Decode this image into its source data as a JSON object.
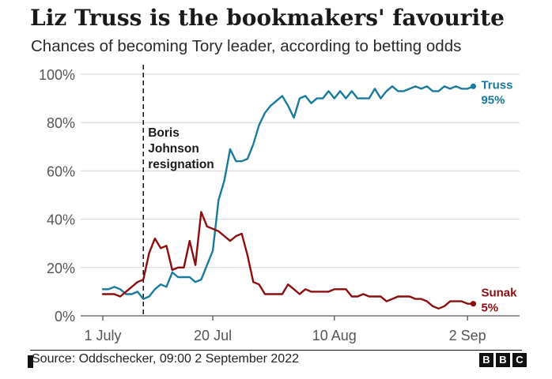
{
  "title": "Liz Truss is the bookmakers' favourite",
  "subtitle": "Chances of becoming Tory leader, according to betting odds",
  "source": "Source: Oddschecker, 09:00 2 September 2022",
  "logo": [
    "B",
    "B",
    "C"
  ],
  "chart_data": {
    "type": "line",
    "y_ticks": [
      "0%",
      "20%",
      "40%",
      "60%",
      "80%",
      "100%"
    ],
    "ylim": [
      0,
      100
    ],
    "x_ticks": [
      {
        "label": "1 July",
        "day": 0
      },
      {
        "label": "20 Jul",
        "day": 19
      },
      {
        "label": "10 Aug",
        "day": 40
      },
      {
        "label": "2 Sep",
        "day": 63
      }
    ],
    "grid": true,
    "annotation": {
      "lines": [
        "Boris",
        "Johnson",
        "resignation"
      ],
      "day": 7
    },
    "series": [
      {
        "name": "Truss",
        "end_label": "95%",
        "color": "#1a7a9c",
        "points": [
          [
            0,
            11
          ],
          [
            1,
            11
          ],
          [
            2,
            12
          ],
          [
            3,
            11
          ],
          [
            4,
            9
          ],
          [
            5,
            9
          ],
          [
            6,
            10
          ],
          [
            7,
            7
          ],
          [
            8,
            8
          ],
          [
            9,
            11
          ],
          [
            10,
            13
          ],
          [
            11,
            12
          ],
          [
            12,
            18
          ],
          [
            13,
            16
          ],
          [
            14,
            16
          ],
          [
            15,
            16
          ],
          [
            16,
            14
          ],
          [
            17,
            15
          ],
          [
            18,
            21
          ],
          [
            19,
            27
          ],
          [
            20,
            48
          ],
          [
            21,
            56
          ],
          [
            22,
            69
          ],
          [
            23,
            64
          ],
          [
            24,
            64
          ],
          [
            25,
            65
          ],
          [
            26,
            71
          ],
          [
            27,
            79
          ],
          [
            28,
            84
          ],
          [
            29,
            87
          ],
          [
            30,
            89
          ],
          [
            31,
            91
          ],
          [
            32,
            87
          ],
          [
            33,
            82
          ],
          [
            34,
            90
          ],
          [
            35,
            91
          ],
          [
            36,
            88
          ],
          [
            37,
            90
          ],
          [
            38,
            90
          ],
          [
            39,
            93
          ],
          [
            40,
            90
          ],
          [
            41,
            93
          ],
          [
            42,
            90
          ],
          [
            43,
            93
          ],
          [
            44,
            90
          ],
          [
            45,
            90
          ],
          [
            46,
            90
          ],
          [
            47,
            94
          ],
          [
            48,
            90
          ],
          [
            49,
            93
          ],
          [
            50,
            95
          ],
          [
            51,
            93
          ],
          [
            52,
            93
          ],
          [
            53,
            94
          ],
          [
            54,
            95
          ],
          [
            55,
            94
          ],
          [
            56,
            95
          ],
          [
            57,
            93
          ],
          [
            58,
            93
          ],
          [
            59,
            95
          ],
          [
            60,
            94
          ],
          [
            61,
            95
          ],
          [
            62,
            94
          ],
          [
            63,
            94
          ],
          [
            64,
            95
          ]
        ]
      },
      {
        "name": "Sunak",
        "end_label": "5%",
        "color": "#8c0d0d",
        "points": [
          [
            0,
            9
          ],
          [
            1,
            9
          ],
          [
            2,
            9
          ],
          [
            3,
            8
          ],
          [
            4,
            10
          ],
          [
            5,
            12
          ],
          [
            6,
            14
          ],
          [
            7,
            15
          ],
          [
            8,
            26
          ],
          [
            9,
            32
          ],
          [
            10,
            28
          ],
          [
            11,
            29
          ],
          [
            12,
            19
          ],
          [
            13,
            20
          ],
          [
            14,
            20
          ],
          [
            15,
            31
          ],
          [
            16,
            21
          ],
          [
            17,
            43
          ],
          [
            18,
            37
          ],
          [
            19,
            36
          ],
          [
            20,
            35
          ],
          [
            21,
            33
          ],
          [
            22,
            31
          ],
          [
            23,
            33
          ],
          [
            24,
            34
          ],
          [
            25,
            25
          ],
          [
            26,
            14
          ],
          [
            27,
            13
          ],
          [
            28,
            9
          ],
          [
            29,
            9
          ],
          [
            30,
            9
          ],
          [
            31,
            9
          ],
          [
            32,
            13
          ],
          [
            33,
            11
          ],
          [
            34,
            9
          ],
          [
            35,
            11
          ],
          [
            36,
            10
          ],
          [
            37,
            10
          ],
          [
            38,
            10
          ],
          [
            39,
            10
          ],
          [
            40,
            11
          ],
          [
            41,
            11
          ],
          [
            42,
            11
          ],
          [
            43,
            8
          ],
          [
            44,
            8
          ],
          [
            45,
            9
          ],
          [
            46,
            8
          ],
          [
            47,
            8
          ],
          [
            48,
            8
          ],
          [
            49,
            6
          ],
          [
            50,
            7
          ],
          [
            51,
            8
          ],
          [
            52,
            8
          ],
          [
            53,
            8
          ],
          [
            54,
            7
          ],
          [
            55,
            7
          ],
          [
            56,
            6
          ],
          [
            57,
            4
          ],
          [
            58,
            3
          ],
          [
            59,
            4
          ],
          [
            60,
            6
          ],
          [
            61,
            6
          ],
          [
            62,
            6
          ],
          [
            63,
            5
          ],
          [
            64,
            5
          ]
        ]
      }
    ]
  }
}
